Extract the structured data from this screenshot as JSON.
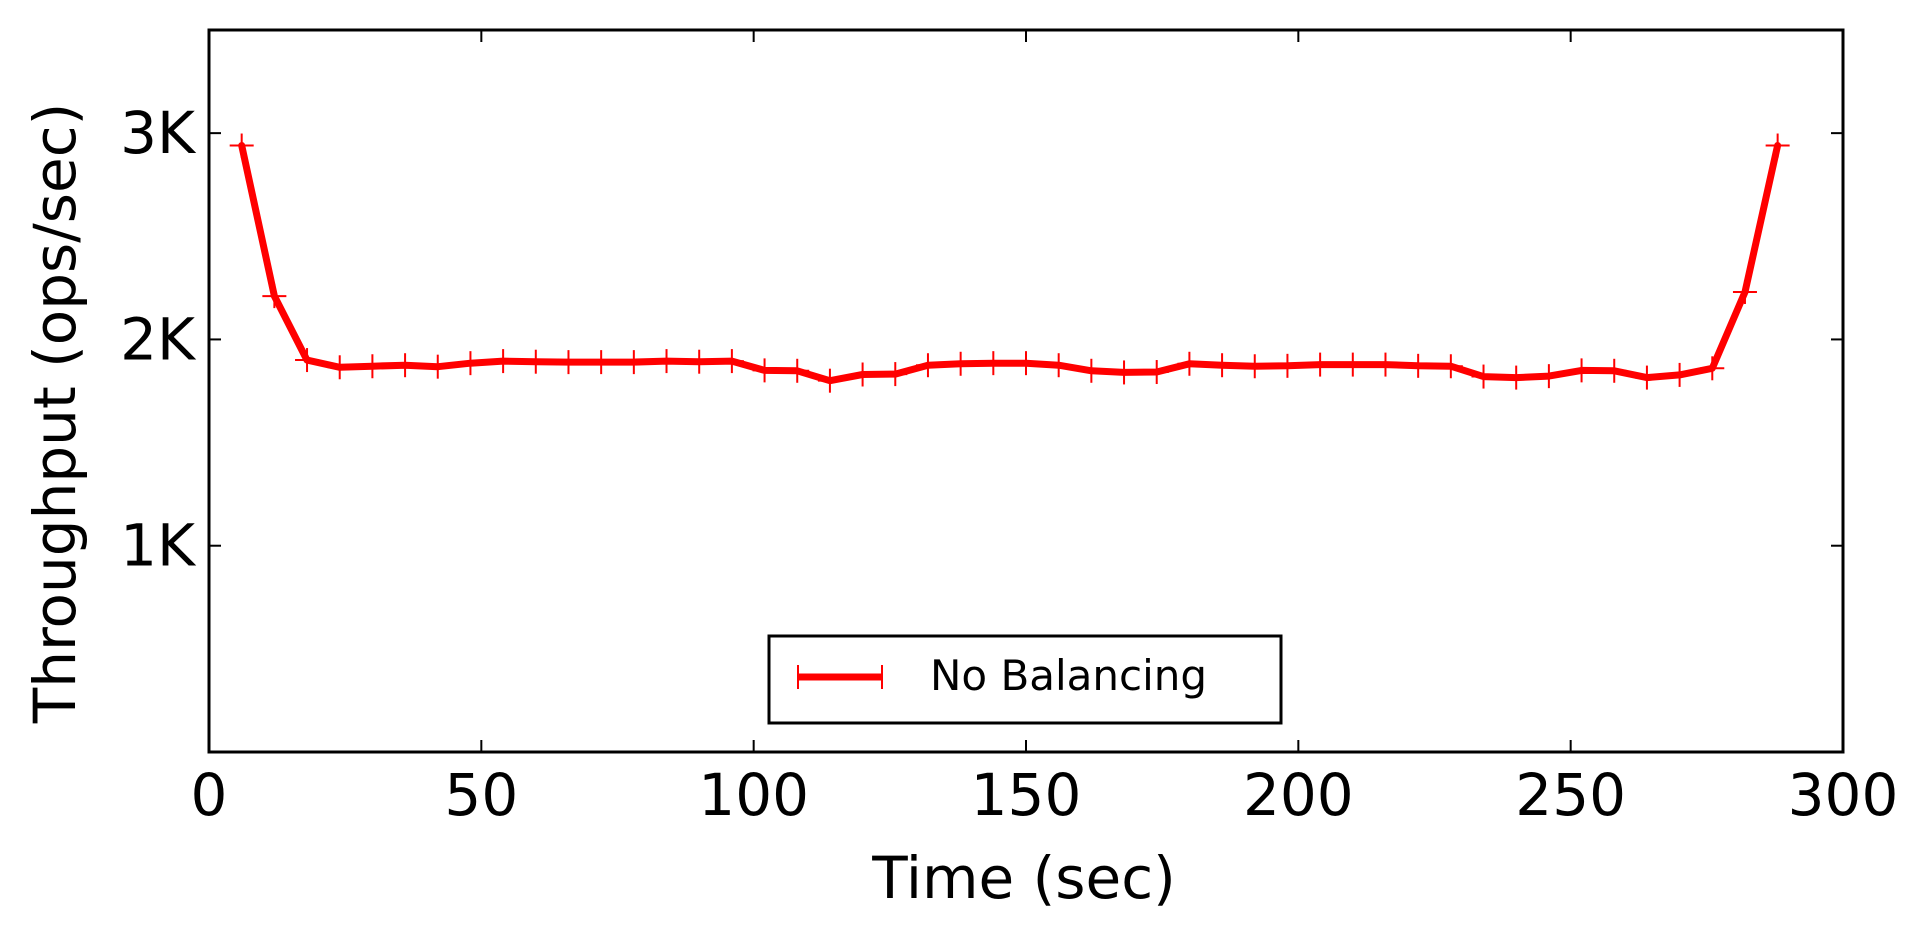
{
  "chart_data": {
    "type": "line",
    "title": "",
    "xlabel": "Time (sec)",
    "ylabel": "Throughput (ops/sec)",
    "xlim": [
      0,
      300
    ],
    "ylim": [
      0,
      3500
    ],
    "x_ticks": [
      0,
      50,
      100,
      150,
      200,
      250,
      300
    ],
    "x_tick_labels": [
      "0",
      "50",
      "100",
      "150",
      "200",
      "250",
      "300"
    ],
    "y_ticks": [
      1000,
      2000,
      3000
    ],
    "y_tick_labels": [
      "1K",
      "2K",
      "3K"
    ],
    "grid": false,
    "legend": {
      "placement": "lower-center",
      "entries": [
        "No Balancing"
      ]
    },
    "series": [
      {
        "name": "No Balancing",
        "color": "#ff0000",
        "marker": "plus",
        "x": [
          6,
          12,
          18,
          24,
          30,
          36,
          42,
          48,
          54,
          60,
          66,
          72,
          78,
          84,
          90,
          96,
          102,
          108,
          114,
          120,
          126,
          132,
          138,
          144,
          150,
          156,
          162,
          168,
          174,
          180,
          186,
          192,
          198,
          204,
          210,
          216,
          222,
          228,
          234,
          240,
          246,
          252,
          258,
          264,
          270,
          276,
          282,
          288
        ],
        "y": [
          2940,
          2210,
          1900,
          1865,
          1870,
          1875,
          1868,
          1885,
          1895,
          1892,
          1890,
          1890,
          1890,
          1895,
          1892,
          1895,
          1850,
          1848,
          1800,
          1830,
          1832,
          1875,
          1882,
          1885,
          1885,
          1875,
          1848,
          1840,
          1842,
          1882,
          1875,
          1870,
          1872,
          1878,
          1878,
          1878,
          1872,
          1870,
          1820,
          1815,
          1822,
          1850,
          1848,
          1815,
          1828,
          1860,
          2230,
          2940
        ]
      }
    ]
  }
}
